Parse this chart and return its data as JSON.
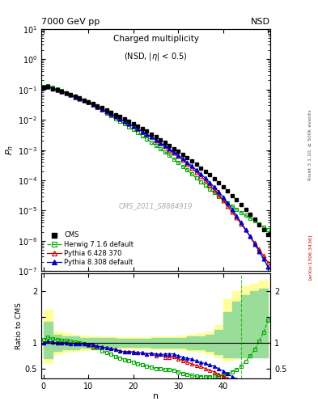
{
  "title_left": "7000 GeV pp",
  "title_right": "NSD",
  "main_title": "Charged multiplicity",
  "main_title_sub": "(NSD, |\\eta| < 0.5)",
  "watermark": "CMS_2011_S8884919",
  "right_label_top": "Rivet 3.1.10, ≥ 500k events",
  "right_label_bot": "[arXiv:1306.3436]",
  "ylabel_top": "P_n",
  "ylabel_bottom": "Ratio to CMS",
  "xlabel": "n",
  "cms_n": [
    0,
    1,
    2,
    3,
    4,
    5,
    6,
    7,
    8,
    9,
    10,
    11,
    12,
    13,
    14,
    15,
    16,
    17,
    18,
    19,
    20,
    21,
    22,
    23,
    24,
    25,
    26,
    27,
    28,
    29,
    30,
    31,
    32,
    33,
    34,
    35,
    36,
    37,
    38,
    39,
    40,
    41,
    42,
    43,
    44,
    45,
    46,
    47,
    48,
    49,
    50
  ],
  "cms_p": [
    0.12,
    0.122,
    0.107,
    0.096,
    0.086,
    0.076,
    0.067,
    0.059,
    0.052,
    0.045,
    0.039,
    0.034,
    0.029,
    0.025,
    0.021,
    0.018,
    0.015,
    0.013,
    0.011,
    0.009,
    0.0075,
    0.0062,
    0.0051,
    0.0042,
    0.0034,
    0.0028,
    0.0022,
    0.0018,
    0.0014,
    0.0011,
    0.0009,
    0.00072,
    0.00056,
    0.00044,
    0.00034,
    0.00026,
    0.0002,
    0.00015,
    0.00011,
    8.5e-05,
    6.2e-05,
    4.5e-05,
    3.2e-05,
    2.3e-05,
    1.6e-05,
    1.1e-05,
    7.5e-06,
    5.2e-06,
    3.5e-06,
    2.4e-06,
    1.6e-06
  ],
  "herwig_n": [
    0,
    1,
    2,
    3,
    4,
    5,
    6,
    7,
    8,
    9,
    10,
    11,
    12,
    13,
    14,
    15,
    16,
    17,
    18,
    19,
    20,
    21,
    22,
    23,
    24,
    25,
    26,
    27,
    28,
    29,
    30,
    31,
    32,
    33,
    34,
    35,
    36,
    37,
    38,
    39,
    40,
    41,
    42,
    43,
    44,
    45,
    46,
    47,
    48,
    49,
    50
  ],
  "herwig_p": [
    0.128,
    0.135,
    0.115,
    0.102,
    0.09,
    0.079,
    0.069,
    0.06,
    0.052,
    0.044,
    0.037,
    0.031,
    0.026,
    0.021,
    0.017,
    0.014,
    0.011,
    0.0092,
    0.0074,
    0.0059,
    0.0047,
    0.0037,
    0.0029,
    0.0023,
    0.0018,
    0.0014,
    0.0011,
    0.00087,
    0.00067,
    0.00051,
    0.00039,
    0.00029,
    0.00022,
    0.00016,
    0.00012,
    9e-05,
    6.8e-05,
    5.1e-05,
    3.9e-05,
    3e-05,
    2.3e-05,
    1.8e-05,
    1.4e-05,
    1.1e-05,
    8.8e-06,
    7e-06,
    5.6e-06,
    4.5e-06,
    3.6e-06,
    2.9e-06,
    2.3e-06
  ],
  "pythia6_n": [
    0,
    1,
    2,
    3,
    4,
    5,
    6,
    7,
    8,
    9,
    10,
    11,
    12,
    13,
    14,
    15,
    16,
    17,
    18,
    19,
    20,
    21,
    22,
    23,
    24,
    25,
    26,
    27,
    28,
    29,
    30,
    31,
    32,
    33,
    34,
    35,
    36,
    37,
    38,
    39,
    40,
    41,
    42,
    43,
    44,
    45,
    46,
    47,
    48,
    49,
    50
  ],
  "pythia6_p": [
    0.12,
    0.125,
    0.108,
    0.096,
    0.086,
    0.076,
    0.066,
    0.058,
    0.051,
    0.044,
    0.038,
    0.032,
    0.027,
    0.023,
    0.019,
    0.016,
    0.013,
    0.011,
    0.0091,
    0.0075,
    0.0062,
    0.005,
    0.0041,
    0.0033,
    0.0027,
    0.0021,
    0.0017,
    0.0013,
    0.001,
    0.0008,
    0.00062,
    0.00047,
    0.00035,
    0.00026,
    0.00019,
    0.00014,
    0.0001,
    7e-05,
    4.8e-05,
    3.3e-05,
    2.2e-05,
    1.4e-05,
    9e-06,
    5.8e-06,
    3.6e-06,
    2.3e-06,
    1.4e-06,
    8.7e-07,
    5.3e-07,
    3.2e-07,
    1.9e-07
  ],
  "pythia8_n": [
    0,
    1,
    2,
    3,
    4,
    5,
    6,
    7,
    8,
    9,
    10,
    11,
    12,
    13,
    14,
    15,
    16,
    17,
    18,
    19,
    20,
    21,
    22,
    23,
    24,
    25,
    26,
    27,
    28,
    29,
    30,
    31,
    32,
    33,
    34,
    35,
    36,
    37,
    38,
    39,
    40,
    41,
    42,
    43,
    44,
    45,
    46,
    47,
    48,
    49,
    50
  ],
  "pythia8_p": [
    0.12,
    0.125,
    0.108,
    0.096,
    0.086,
    0.076,
    0.066,
    0.058,
    0.051,
    0.044,
    0.038,
    0.033,
    0.027,
    0.023,
    0.019,
    0.016,
    0.013,
    0.011,
    0.009,
    0.0074,
    0.0061,
    0.005,
    0.0041,
    0.0033,
    0.0027,
    0.0022,
    0.0017,
    0.0014,
    0.0011,
    0.00086,
    0.00067,
    0.00052,
    0.00039,
    0.0003,
    0.00022,
    0.00016,
    0.00012,
    8.5e-05,
    6e-05,
    4.2e-05,
    2.8e-05,
    1.8e-05,
    1.1e-05,
    6.8e-06,
    4e-06,
    2.4e-06,
    1.4e-06,
    8e-07,
    4.5e-07,
    2.5e-07,
    1.4e-07
  ],
  "cms_color": "#000000",
  "herwig_color": "#00aa00",
  "pythia6_color": "#cc0000",
  "pythia8_color": "#0000cc",
  "band_edges": [
    0,
    2,
    4,
    6,
    8,
    10,
    12,
    14,
    16,
    18,
    20,
    22,
    24,
    26,
    28,
    30,
    32,
    34,
    36,
    38,
    40,
    42,
    44,
    46,
    48,
    50
  ],
  "yellow_lo": [
    0.6,
    0.78,
    0.82,
    0.84,
    0.86,
    0.87,
    0.88,
    0.88,
    0.89,
    0.89,
    0.89,
    0.89,
    0.88,
    0.88,
    0.87,
    0.86,
    0.84,
    0.82,
    0.78,
    0.72,
    0.65,
    0.7,
    0.82,
    0.88,
    0.9,
    0.9
  ],
  "yellow_hi": [
    1.65,
    1.22,
    1.18,
    1.16,
    1.14,
    1.13,
    1.12,
    1.12,
    1.11,
    1.11,
    1.11,
    1.11,
    1.12,
    1.12,
    1.13,
    1.14,
    1.16,
    1.18,
    1.22,
    1.35,
    1.85,
    2.0,
    2.1,
    2.15,
    2.2,
    2.2
  ],
  "green_lo": [
    0.7,
    0.84,
    0.87,
    0.88,
    0.9,
    0.9,
    0.91,
    0.91,
    0.92,
    0.92,
    0.92,
    0.92,
    0.91,
    0.91,
    0.9,
    0.9,
    0.88,
    0.87,
    0.84,
    0.78,
    0.72,
    0.72,
    0.72,
    0.72,
    0.72,
    0.72
  ],
  "green_hi": [
    1.4,
    1.16,
    1.13,
    1.12,
    1.1,
    1.1,
    1.09,
    1.09,
    1.08,
    1.08,
    1.08,
    1.08,
    1.09,
    1.09,
    1.1,
    1.1,
    1.12,
    1.13,
    1.16,
    1.25,
    1.6,
    1.8,
    1.92,
    2.0,
    2.05,
    2.05
  ]
}
